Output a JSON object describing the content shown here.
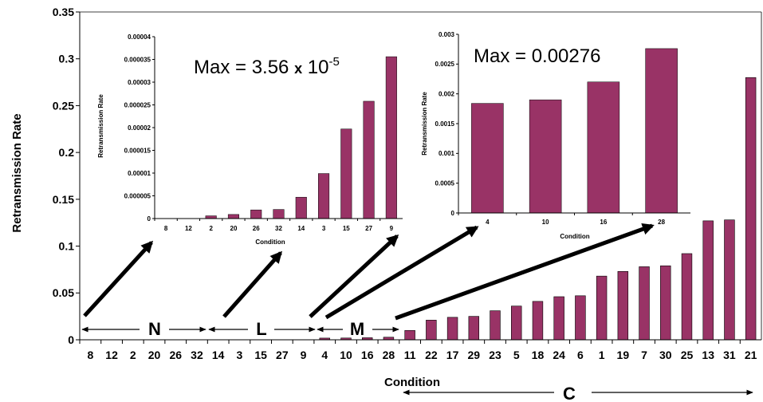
{
  "chart_data": [
    {
      "type": "bar",
      "title": "",
      "xlabel": "Condition",
      "ylabel": "Retransmission Rate",
      "ylim": [
        0,
        0.35
      ],
      "yticks": [
        "0",
        "0.05",
        "0.1",
        "0.15",
        "0.2",
        "0.25",
        "0.3",
        "0.35"
      ],
      "categories": [
        "8",
        "12",
        "2",
        "20",
        "26",
        "32",
        "14",
        "3",
        "15",
        "27",
        "9",
        "4",
        "10",
        "16",
        "28",
        "11",
        "22",
        "17",
        "29",
        "23",
        "5",
        "18",
        "24",
        "6",
        "1",
        "19",
        "7",
        "30",
        "25",
        "13",
        "31",
        "21"
      ],
      "values": [
        0,
        0,
        0,
        0,
        0,
        0,
        0,
        0,
        0,
        0,
        0,
        0.0018,
        0.0019,
        0.0022,
        0.00276,
        0.01,
        0.021,
        0.024,
        0.025,
        0.031,
        0.036,
        0.041,
        0.046,
        0.047,
        0.068,
        0.073,
        0.078,
        0.079,
        0.092,
        0.127,
        0.128,
        0.28
      ],
      "bar_color": "#993366",
      "group_labels": [
        "N",
        "L",
        "M",
        "C"
      ],
      "grid": false
    },
    {
      "type": "bar",
      "title": "Max = 3.56 x 10-5",
      "title_parts": {
        "prefix": "Max = 3.56 ",
        "times": "x",
        "base": " 10",
        "exponent": "-5"
      },
      "xlabel": "Condition",
      "ylabel": "Retransmission Rate",
      "ylim": [
        0,
        4e-05
      ],
      "yticks": [
        "0",
        "0.000005",
        "0.00001",
        "0.000015",
        "0.00002",
        "0.000025",
        "0.00003",
        "0.000035",
        "0.00004"
      ],
      "categories": [
        "8",
        "12",
        "2",
        "20",
        "26",
        "32",
        "14",
        "3",
        "15",
        "27",
        "9"
      ],
      "values": [
        0,
        0,
        6e-07,
        9e-07,
        1.9e-06,
        2e-06,
        4.7e-06,
        9.9e-06,
        1.97e-05,
        2.58e-05,
        3.56e-05
      ],
      "bar_color": "#993366"
    },
    {
      "type": "bar",
      "title": "Max = 0.00276",
      "xlabel": "Condition",
      "ylabel": "Retransmission Rate",
      "ylim": [
        0,
        0.003
      ],
      "yticks": [
        "0",
        "0.0005",
        "0.001",
        "0.0015",
        "0.002",
        "0.0025",
        "0.003"
      ],
      "categories": [
        "4",
        "10",
        "16",
        "28"
      ],
      "values": [
        0.00184,
        0.0019,
        0.0022,
        0.00276
      ],
      "bar_color": "#993366"
    }
  ]
}
